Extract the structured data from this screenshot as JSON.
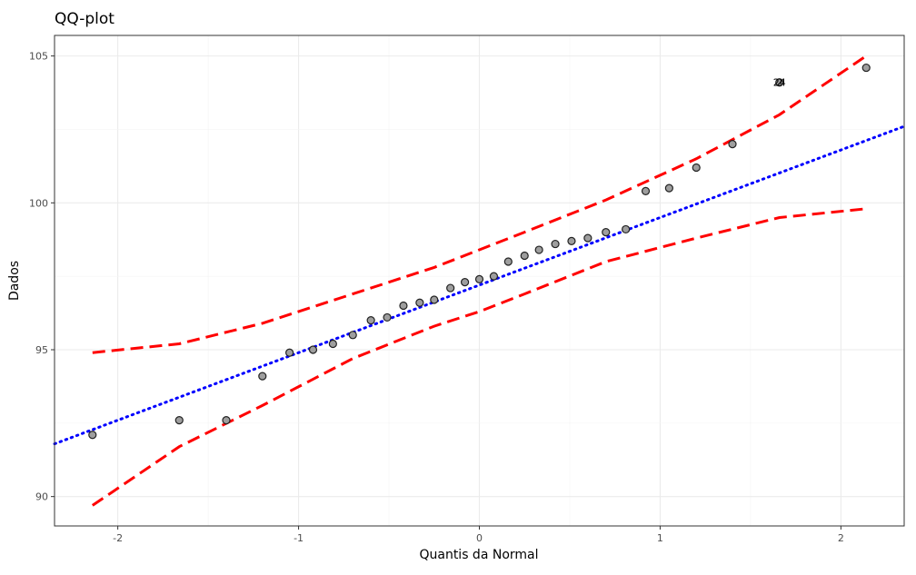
{
  "chart_data": {
    "type": "scatter",
    "title": "QQ-plot",
    "xlabel": "Quantis da Normal",
    "ylabel": "Dados",
    "xlim": [
      -2.35,
      2.35
    ],
    "ylim": [
      89.0,
      105.7
    ],
    "x_ticks": [
      -2,
      -1,
      0,
      1,
      2
    ],
    "y_ticks": [
      90,
      95,
      100,
      105
    ],
    "grid": true,
    "points": {
      "x": [
        -2.14,
        -1.66,
        -1.4,
        -1.2,
        -1.05,
        -0.92,
        -0.81,
        -0.7,
        -0.6,
        -0.51,
        -0.42,
        -0.33,
        -0.25,
        -0.16,
        -0.08,
        0.0,
        0.08,
        0.16,
        0.25,
        0.33,
        0.42,
        0.51,
        0.6,
        0.7,
        0.81,
        0.92,
        1.05,
        1.2,
        1.4,
        1.66,
        2.14
      ],
      "y": [
        92.1,
        92.6,
        92.6,
        94.1,
        94.9,
        95.0,
        95.2,
        95.5,
        96.0,
        96.1,
        96.5,
        96.6,
        96.7,
        97.1,
        97.3,
        97.4,
        97.5,
        98.0,
        98.2,
        98.4,
        98.6,
        98.7,
        98.8,
        99.0,
        99.1,
        100.4,
        100.5,
        101.2,
        102.0,
        104.1,
        104.6
      ]
    },
    "reference_line": {
      "intercept": 97.2,
      "slope": 2.3,
      "color": "#0000ff",
      "style": "dotted"
    },
    "envelope": {
      "color": "#ff0000",
      "style": "dashed",
      "x": [
        -2.14,
        -1.66,
        -1.2,
        -0.7,
        -0.25,
        0.0,
        0.25,
        0.7,
        1.2,
        1.66,
        2.14
      ],
      "upper": [
        94.9,
        95.2,
        95.9,
        96.9,
        97.8,
        98.4,
        99.0,
        100.1,
        101.5,
        103.0,
        105.0
      ],
      "lower": [
        89.7,
        91.7,
        93.1,
        94.7,
        95.8,
        96.3,
        96.9,
        98.0,
        98.8,
        99.5,
        99.8
      ]
    },
    "labels": [
      {
        "text": "24",
        "x": 1.66,
        "y": 104.1
      },
      {
        "text": "2",
        "x": 1.66,
        "y": 104.1
      }
    ],
    "point_fill": "#9e9e9e",
    "point_stroke": "#222222"
  }
}
